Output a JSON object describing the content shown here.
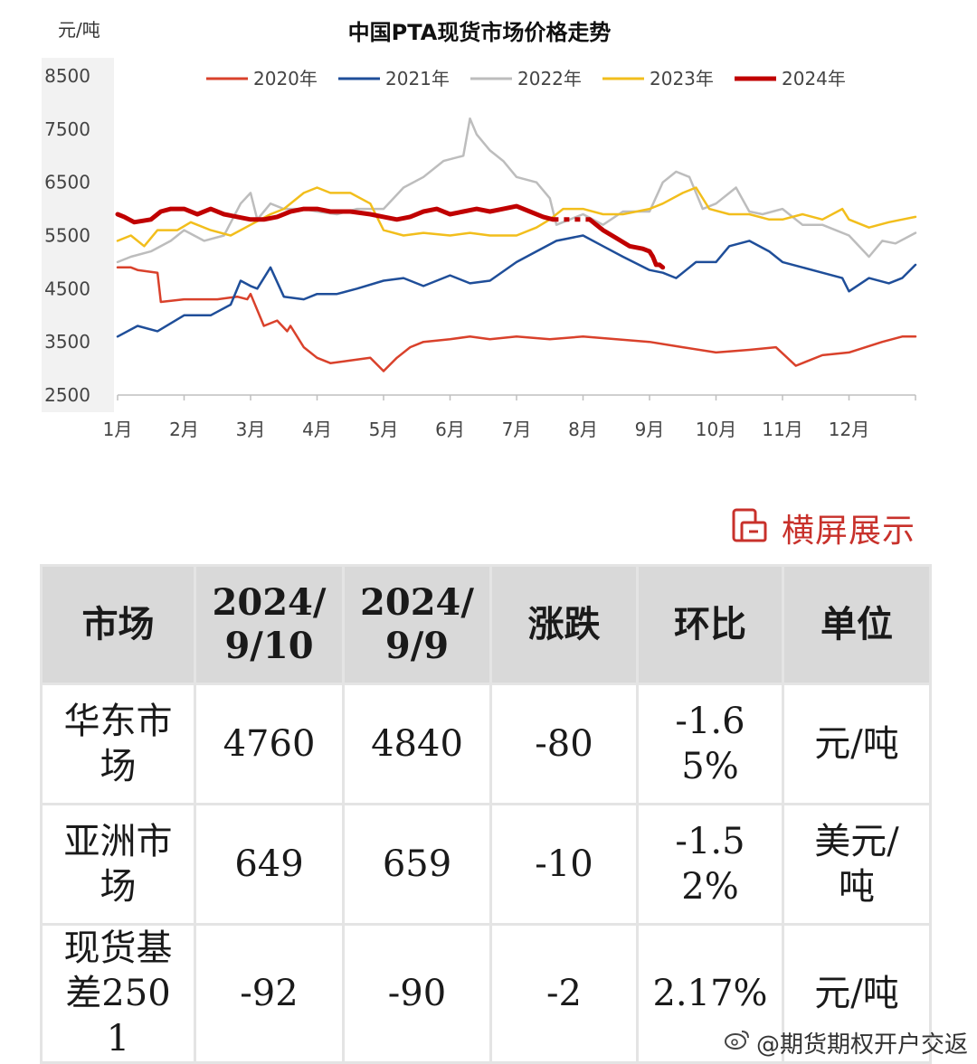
{
  "chart_data": {
    "type": "line",
    "title": "中国PTA现货市场价格走势",
    "unit_label": "元/吨",
    "ylim": [
      2500,
      8500
    ],
    "yticks": [
      "8500",
      "7500",
      "6500",
      "5500",
      "4500",
      "3500",
      "2500"
    ],
    "ytick_values": [
      8500,
      7500,
      6500,
      5500,
      4500,
      3500,
      2500
    ],
    "months": [
      "1月",
      "2月",
      "3月",
      "4月",
      "5月",
      "6月",
      "7月",
      "8月",
      "9月",
      "10月",
      "11月",
      "12月"
    ],
    "x_unit": "month (1.0 = Jan 1, 13.0 = end of Dec)",
    "xlim": [
      1,
      13
    ],
    "legend_position": "top",
    "grid": false,
    "series": [
      {
        "name": "2020年",
        "color": "#d9412b",
        "width": 2.5,
        "x": [
          1.0,
          1.2,
          1.3,
          1.6,
          1.65,
          2.0,
          2.5,
          2.8,
          2.95,
          3.0,
          3.2,
          3.4,
          3.55,
          3.6,
          3.8,
          4.0,
          4.2,
          4.5,
          4.8,
          5.0,
          5.2,
          5.4,
          5.6,
          6.0,
          6.3,
          6.6,
          7.0,
          7.5,
          8.0,
          8.5,
          9.0,
          9.5,
          10.0,
          10.5,
          10.9,
          11.2,
          11.6,
          12.0,
          12.5,
          12.8,
          13.0
        ],
        "y": [
          4900,
          4900,
          4850,
          4800,
          4250,
          4300,
          4300,
          4350,
          4300,
          4400,
          3800,
          3900,
          3700,
          3800,
          3400,
          3200,
          3100,
          3150,
          3200,
          2950,
          3200,
          3400,
          3500,
          3550,
          3600,
          3550,
          3600,
          3550,
          3600,
          3550,
          3500,
          3400,
          3300,
          3350,
          3400,
          3050,
          3250,
          3300,
          3500,
          3600,
          3600
        ]
      },
      {
        "name": "2021年",
        "color": "#1f4e99",
        "width": 2.5,
        "x": [
          1.0,
          1.3,
          1.6,
          2.0,
          2.4,
          2.7,
          2.85,
          3.0,
          3.1,
          3.3,
          3.5,
          3.8,
          4.0,
          4.3,
          4.6,
          5.0,
          5.3,
          5.6,
          6.0,
          6.3,
          6.6,
          7.0,
          7.3,
          7.6,
          8.0,
          8.3,
          8.6,
          9.0,
          9.2,
          9.4,
          9.7,
          10.0,
          10.2,
          10.5,
          10.8,
          11.0,
          11.3,
          11.6,
          11.9,
          12.0,
          12.3,
          12.6,
          12.8,
          13.0
        ],
        "y": [
          3600,
          3800,
          3700,
          4000,
          4000,
          4200,
          4650,
          4550,
          4500,
          4900,
          4350,
          4300,
          4400,
          4400,
          4500,
          4650,
          4700,
          4550,
          4750,
          4600,
          4650,
          5000,
          5200,
          5400,
          5500,
          5300,
          5100,
          4850,
          4800,
          4700,
          5000,
          5000,
          5300,
          5400,
          5200,
          5000,
          4900,
          4800,
          4700,
          4450,
          4700,
          4600,
          4700,
          4950
        ]
      },
      {
        "name": "2022年",
        "color": "#bdbdbd",
        "width": 2.5,
        "x": [
          1.0,
          1.2,
          1.5,
          1.8,
          2.0,
          2.3,
          2.6,
          2.85,
          3.0,
          3.1,
          3.3,
          3.5,
          3.8,
          4.0,
          4.3,
          4.6,
          5.0,
          5.3,
          5.6,
          5.9,
          6.2,
          6.3,
          6.4,
          6.6,
          6.8,
          7.0,
          7.3,
          7.5,
          7.6,
          8.0,
          8.3,
          8.6,
          9.0,
          9.2,
          9.4,
          9.6,
          9.8,
          10.0,
          10.3,
          10.5,
          10.7,
          11.0,
          11.3,
          11.6,
          12.0,
          12.3,
          12.5,
          12.7,
          13.0
        ],
        "y": [
          5000,
          5100,
          5200,
          5400,
          5600,
          5400,
          5500,
          6100,
          6300,
          5800,
          6100,
          6000,
          6000,
          5950,
          5900,
          6000,
          6000,
          6400,
          6600,
          6900,
          7000,
          7700,
          7400,
          7100,
          6900,
          6600,
          6500,
          6200,
          5700,
          5900,
          5700,
          5950,
          5950,
          6500,
          6700,
          6600,
          6000,
          6100,
          6400,
          5950,
          5900,
          6000,
          5700,
          5700,
          5500,
          5100,
          5400,
          5350,
          5550
        ]
      },
      {
        "name": "2023年",
        "color": "#f2be1c",
        "width": 2.5,
        "x": [
          1.0,
          1.2,
          1.4,
          1.6,
          1.9,
          2.1,
          2.4,
          2.7,
          3.0,
          3.3,
          3.5,
          3.8,
          4.0,
          4.2,
          4.5,
          4.8,
          5.0,
          5.3,
          5.6,
          6.0,
          6.3,
          6.6,
          7.0,
          7.3,
          7.5,
          7.7,
          8.0,
          8.3,
          8.6,
          9.0,
          9.2,
          9.5,
          9.7,
          9.9,
          10.2,
          10.5,
          10.8,
          11.0,
          11.3,
          11.6,
          11.9,
          12.0,
          12.3,
          12.6,
          12.8,
          13.0
        ],
        "y": [
          5400,
          5500,
          5300,
          5600,
          5600,
          5750,
          5600,
          5500,
          5700,
          5900,
          6000,
          6300,
          6400,
          6300,
          6300,
          6100,
          5600,
          5500,
          5550,
          5500,
          5550,
          5500,
          5500,
          5650,
          5800,
          6000,
          6000,
          5900,
          5900,
          6000,
          6100,
          6300,
          6400,
          6000,
          5900,
          5900,
          5800,
          5800,
          5900,
          5800,
          6000,
          5800,
          5650,
          5750,
          5800,
          5850
        ]
      },
      {
        "name": "2024年",
        "color": "#c00000",
        "width": 5,
        "x": [
          1.0,
          1.1,
          1.25,
          1.5,
          1.65,
          1.8,
          2.0,
          2.2,
          2.4,
          2.6,
          2.8,
          3.0,
          3.2,
          3.4,
          3.6,
          3.8,
          4.0,
          4.2,
          4.5,
          4.8,
          5.0,
          5.2,
          5.4,
          5.6,
          5.8,
          6.0,
          6.2,
          6.4,
          6.6,
          6.8,
          7.0,
          7.2,
          7.4,
          7.55
        ],
        "y": [
          5900,
          5850,
          5750,
          5800,
          5950,
          6000,
          6000,
          5900,
          6000,
          5900,
          5850,
          5800,
          5800,
          5850,
          5950,
          6000,
          6000,
          5950,
          5950,
          5900,
          5850,
          5800,
          5850,
          5950,
          6000,
          5900,
          5950,
          6000,
          5950,
          6000,
          6050,
          5950,
          5850,
          5800
        ]
      }
    ],
    "gap_segment": {
      "series": "2024年",
      "x": [
        7.55,
        8.1
      ],
      "y": [
        5800,
        5800
      ]
    },
    "tail_segment": {
      "series": "2024年",
      "x": [
        8.1,
        8.3,
        8.5,
        8.7,
        8.9,
        9.0,
        9.05,
        9.1,
        9.15,
        9.2
      ],
      "y": [
        5800,
        5600,
        5450,
        5300,
        5250,
        5200,
        5100,
        4950,
        4950,
        4900
      ]
    }
  },
  "rotate_link": {
    "label": "横屏展示",
    "color": "#c8312b"
  },
  "table": {
    "headers": [
      "市场",
      "2024/9/10",
      "2024/9/9",
      "涨跌",
      "环比",
      "单位"
    ],
    "rows": [
      [
        "华东市场",
        "4760",
        "4840",
        "-80",
        "-1.65%",
        "元/吨"
      ],
      [
        "亚洲市场",
        "649",
        "659",
        "-10",
        "-1.52%",
        "美元/吨"
      ],
      [
        "现货基差2501",
        "-92",
        "-90",
        "-2",
        "2.17%",
        "元/吨"
      ]
    ]
  },
  "watermark": {
    "text": "@期货期权开户交返",
    "icon": "weibo-logo-icon"
  }
}
